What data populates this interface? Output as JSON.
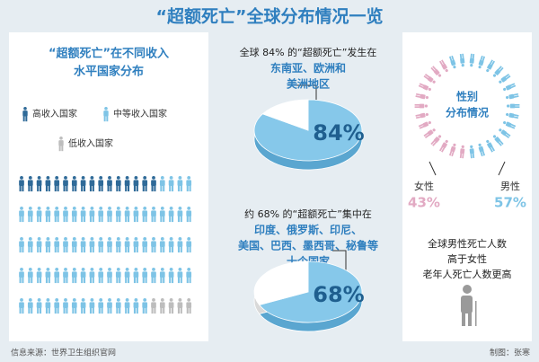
{
  "title": "“超额死亡”全球分布情况一览",
  "source": "信息来源：世界卫生组织官网",
  "credit": "制图：张寒",
  "chart_data": [
    {
      "type": "pictogram",
      "title": [
        "“超额死亡”在不同收入",
        "水平国家分布"
      ],
      "series": [
        {
          "name": "高收入国家",
          "color": "#2f6a98",
          "values": [
            16
          ]
        },
        {
          "name": "中等收入国家",
          "color": "#7ec4e6",
          "values": [
            79
          ]
        },
        {
          "name": "低收入国家",
          "color": "#bdbdbd",
          "values": [
            5
          ]
        }
      ]
    },
    {
      "type": "pie",
      "title": [
        "全球 84% 的“超额死亡”发生在",
        "东南亚、欧洲和",
        "美洲地区"
      ],
      "values": [
        84
      ],
      "value_labels": [
        "84%"
      ],
      "color": "#86c8ea"
    },
    {
      "type": "pie",
      "title": [
        "约 68% 的“超额死亡”集中在",
        "印度、俄罗斯、印尼、",
        "美国、巴西、墨西哥、秘鲁等",
        "十个国家"
      ],
      "values": [
        68
      ],
      "value_labels": [
        "68%"
      ],
      "color": "#86c8ea"
    },
    {
      "type": "ring",
      "title": [
        "性别",
        "分布情况"
      ],
      "series": [
        {
          "name": "女性",
          "color": "#e2aac3",
          "values": [
            43
          ],
          "value_labels": [
            "43%"
          ]
        },
        {
          "name": "男性",
          "color": "#7ec4e6",
          "values": [
            57
          ],
          "value_labels": [
            "57%"
          ]
        }
      ],
      "notes": [
        "全球男性死亡人数",
        "高于女性",
        "老年人死亡人数更高"
      ]
    }
  ]
}
